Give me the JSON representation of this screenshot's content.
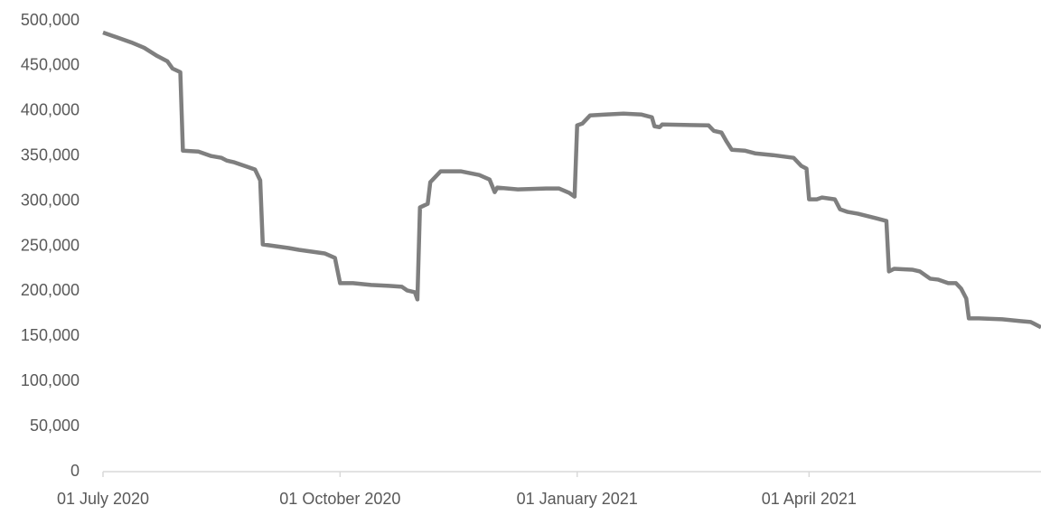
{
  "chart_data": {
    "type": "line",
    "x": [
      "2020-07-01",
      "2020-07-05",
      "2020-07-12",
      "2020-07-17",
      "2020-07-22",
      "2020-07-26",
      "2020-07-28",
      "2020-07-31",
      "2020-08-01",
      "2020-08-07",
      "2020-08-12",
      "2020-08-16",
      "2020-08-18",
      "2020-08-21",
      "2020-08-26",
      "2020-08-29",
      "2020-08-31",
      "2020-09-01",
      "2020-09-06",
      "2020-09-11",
      "2020-09-15",
      "2020-09-20",
      "2020-09-25",
      "2020-09-29",
      "2020-10-01",
      "2020-10-06",
      "2020-10-13",
      "2020-10-20",
      "2020-10-25",
      "2020-10-27",
      "2020-10-30",
      "2020-10-31",
      "2020-11-01",
      "2020-11-04",
      "2020-11-05",
      "2020-11-09",
      "2020-11-17",
      "2020-11-24",
      "2020-11-28",
      "2020-11-30",
      "2020-12-01",
      "2020-12-09",
      "2020-12-20",
      "2020-12-25",
      "2020-12-29",
      "2020-12-31",
      "2021-01-01",
      "2021-01-03",
      "2021-01-06",
      "2021-01-12",
      "2021-01-19",
      "2021-01-26",
      "2021-01-30",
      "2021-01-31",
      "2021-02-02",
      "2021-02-03",
      "2021-02-21",
      "2021-02-23",
      "2021-02-26",
      "2021-02-28",
      "2021-03-02",
      "2021-03-07",
      "2021-03-11",
      "2021-03-18",
      "2021-03-26",
      "2021-03-29",
      "2021-03-31",
      "2021-04-01",
      "2021-04-04",
      "2021-04-06",
      "2021-04-11",
      "2021-04-13",
      "2021-04-16",
      "2021-04-20",
      "2021-04-27",
      "2021-05-01",
      "2021-05-02",
      "2021-05-04",
      "2021-05-11",
      "2021-05-14",
      "2021-05-18",
      "2021-05-21",
      "2021-05-25",
      "2021-05-28",
      "2021-05-30",
      "2021-06-01",
      "2021-06-02",
      "2021-06-06",
      "2021-06-15",
      "2021-06-22",
      "2021-06-26",
      "2021-06-30"
    ],
    "series": [
      {
        "color": "#7f7f7f",
        "values": [
          487000,
          483000,
          476000,
          470000,
          461000,
          455000,
          447000,
          443000,
          356000,
          355000,
          350000,
          348000,
          345000,
          343000,
          338000,
          335000,
          323000,
          252000,
          250000,
          248000,
          246000,
          244000,
          242000,
          237000,
          209000,
          209000,
          207000,
          206000,
          205000,
          201000,
          199000,
          191000,
          293000,
          297000,
          321000,
          333000,
          333000,
          329000,
          324000,
          310000,
          315000,
          313000,
          314000,
          314000,
          309000,
          305000,
          384000,
          386000,
          395000,
          396000,
          397000,
          396000,
          393000,
          383000,
          382000,
          385000,
          384000,
          378000,
          376000,
          366000,
          357000,
          356000,
          353000,
          351000,
          348000,
          339000,
          336000,
          302000,
          302000,
          304000,
          302000,
          291000,
          288000,
          286000,
          281000,
          278000,
          222000,
          225000,
          224000,
          222000,
          214000,
          213000,
          209000,
          209000,
          203000,
          192000,
          170000,
          170000,
          169000,
          167000,
          166000,
          160000
        ]
      }
    ],
    "xlim": [
      "2020-07-01",
      "2021-06-30"
    ],
    "xticks": [
      {
        "value": "2020-07-01",
        "label": "01 July 2020"
      },
      {
        "value": "2020-10-01",
        "label": "01 October 2020"
      },
      {
        "value": "2021-01-01",
        "label": "01 January 2021"
      },
      {
        "value": "2021-04-01",
        "label": "01 April 2021"
      }
    ],
    "ylim": [
      0,
      500000
    ],
    "yticks": [
      0,
      {
        "value": 50000,
        "label": "50,000"
      },
      {
        "value": 100000,
        "label": "100,000"
      },
      {
        "value": 150000,
        "label": "150,000"
      },
      {
        "value": 200000,
        "label": "200,000"
      },
      {
        "value": 250000,
        "label": "250,000"
      },
      {
        "value": 300000,
        "label": "300,000"
      },
      {
        "value": 350000,
        "label": "350,000"
      },
      {
        "value": 400000,
        "label": "400,000"
      },
      {
        "value": 450000,
        "label": "450,000"
      },
      {
        "value": 500000,
        "label": "500,000"
      }
    ],
    "grid": false
  }
}
